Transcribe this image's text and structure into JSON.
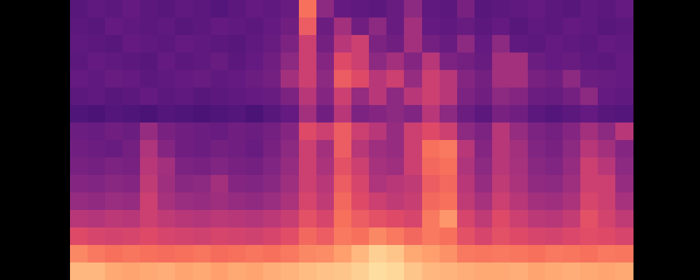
{
  "chart_data": {
    "type": "heatmap",
    "xlim": [
      0,
      32
    ],
    "ylim": [
      0,
      16
    ],
    "zlim": [
      0,
      100
    ],
    "tick_labels": false,
    "grid": false,
    "cells": [
      [
        27,
        29,
        28,
        30,
        28,
        27,
        29,
        28,
        26,
        28,
        30,
        29,
        31,
        70,
        40,
        30,
        29,
        28,
        31,
        40,
        29,
        28,
        35,
        27,
        28,
        29,
        30,
        28,
        27,
        29,
        28,
        30
      ],
      [
        28,
        27,
        30,
        29,
        28,
        29,
        27,
        28,
        30,
        29,
        28,
        30,
        33,
        65,
        32,
        45,
        33,
        40,
        31,
        45,
        30,
        29,
        31,
        28,
        30,
        27,
        29,
        28,
        30,
        29,
        27,
        28
      ],
      [
        29,
        28,
        27,
        30,
        29,
        28,
        30,
        29,
        28,
        27,
        29,
        31,
        36,
        55,
        34,
        50,
        55,
        36,
        33,
        45,
        34,
        31,
        40,
        30,
        40,
        29,
        28,
        30,
        29,
        28,
        30,
        29
      ],
      [
        28,
        30,
        29,
        28,
        27,
        30,
        28,
        29,
        31,
        28,
        30,
        33,
        40,
        55,
        38,
        60,
        55,
        40,
        45,
        38,
        50,
        36,
        34,
        31,
        45,
        45,
        32,
        30,
        31,
        29,
        28,
        30
      ],
      [
        30,
        29,
        31,
        30,
        28,
        29,
        30,
        31,
        29,
        30,
        32,
        34,
        45,
        55,
        40,
        65,
        60,
        50,
        55,
        42,
        55,
        50,
        38,
        34,
        45,
        45,
        35,
        33,
        40,
        32,
        31,
        30
      ],
      [
        28,
        29,
        27,
        28,
        30,
        28,
        29,
        27,
        28,
        29,
        30,
        31,
        36,
        50,
        38,
        55,
        42,
        50,
        40,
        50,
        55,
        50,
        36,
        33,
        40,
        38,
        32,
        31,
        34,
        40,
        30,
        29
      ],
      [
        25,
        24,
        26,
        25,
        24,
        26,
        25,
        24,
        25,
        26,
        24,
        27,
        30,
        45,
        33,
        50,
        36,
        38,
        40,
        37,
        50,
        40,
        32,
        28,
        35,
        33,
        28,
        26,
        28,
        30,
        27,
        26
      ],
      [
        32,
        31,
        33,
        32,
        42,
        35,
        33,
        32,
        31,
        33,
        32,
        34,
        38,
        60,
        55,
        65,
        55,
        50,
        42,
        55,
        60,
        55,
        40,
        36,
        50,
        42,
        36,
        34,
        38,
        45,
        40,
        50
      ],
      [
        33,
        32,
        31,
        34,
        48,
        38,
        33,
        32,
        34,
        33,
        31,
        35,
        40,
        55,
        45,
        65,
        50,
        44,
        42,
        55,
        70,
        72,
        50,
        38,
        50,
        45,
        37,
        35,
        40,
        50,
        45,
        38
      ],
      [
        35,
        34,
        36,
        35,
        50,
        45,
        36,
        35,
        37,
        35,
        34,
        37,
        42,
        55,
        47,
        62,
        55,
        46,
        44,
        55,
        68,
        70,
        48,
        40,
        50,
        46,
        39,
        37,
        42,
        55,
        50,
        40
      ],
      [
        38,
        37,
        39,
        38,
        52,
        44,
        39,
        40,
        45,
        38,
        37,
        39,
        44,
        55,
        50,
        65,
        58,
        48,
        50,
        52,
        65,
        68,
        50,
        42,
        52,
        47,
        41,
        40,
        44,
        55,
        55,
        42
      ],
      [
        42,
        41,
        43,
        42,
        55,
        46,
        43,
        42,
        44,
        42,
        41,
        43,
        47,
        58,
        52,
        68,
        60,
        55,
        52,
        54,
        68,
        70,
        52,
        46,
        55,
        50,
        45,
        44,
        47,
        58,
        55,
        46
      ],
      [
        50,
        49,
        51,
        50,
        55,
        52,
        50,
        49,
        51,
        50,
        49,
        51,
        54,
        62,
        58,
        70,
        65,
        62,
        60,
        58,
        72,
        78,
        58,
        52,
        60,
        55,
        51,
        50,
        53,
        62,
        57,
        52
      ],
      [
        60,
        58,
        57,
        58,
        60,
        58,
        57,
        56,
        58,
        57,
        56,
        58,
        61,
        68,
        65,
        72,
        70,
        75,
        72,
        68,
        72,
        70,
        62,
        58,
        62,
        60,
        58,
        57,
        59,
        61,
        60,
        58
      ],
      [
        75,
        72,
        70,
        71,
        70,
        69,
        70,
        71,
        69,
        70,
        71,
        70,
        72,
        75,
        76,
        80,
        85,
        90,
        88,
        82,
        80,
        77,
        72,
        71,
        72,
        71,
        70,
        72,
        71,
        70,
        72,
        71
      ],
      [
        85,
        85,
        82,
        81,
        82,
        83,
        81,
        82,
        80,
        82,
        81,
        83,
        84,
        86,
        87,
        88,
        90,
        93,
        92,
        88,
        85,
        84,
        83,
        82,
        82,
        83,
        81,
        82,
        83,
        82,
        81,
        82
      ]
    ]
  }
}
